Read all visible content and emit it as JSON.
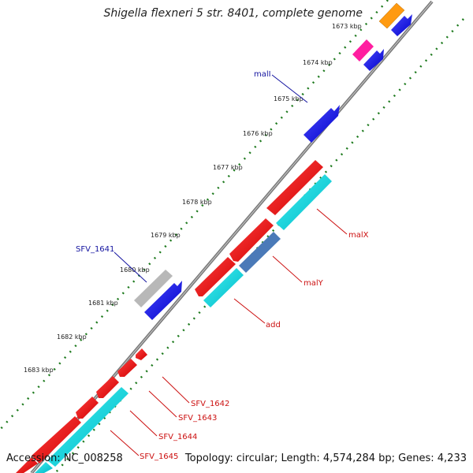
{
  "title": "Shigella flexneri 5 str. 8401, complete genome",
  "accession_label": "Accession: NC_008258",
  "stats_label": "Topology: circular; Length: 4,574,284 bp; Genes: 4,233",
  "colors": {
    "backbone": "#8a8a8a",
    "tick": "#1e7a1e",
    "label_forward": "#1414a0",
    "label_reverse": "#cc1010"
  },
  "tick_labels": [
    "1673 kbp",
    "1674 kbp",
    "1675 kbp",
    "1676 kbp",
    "1677 kbp",
    "1678 kbp",
    "1679 kbp",
    "1680 kbp",
    "1681 kbp",
    "1682 kbp",
    "1683 kbp"
  ],
  "gene_labels": {
    "malI": "malI",
    "SFV_1641": "SFV_1641",
    "malX": "malX",
    "malY": "malY",
    "add": "add",
    "SFV_1642": "SFV_1642",
    "SFV_1643": "SFV_1643",
    "SFV_1644": "SFV_1644",
    "SFV_1645": "SFV_1645"
  }
}
